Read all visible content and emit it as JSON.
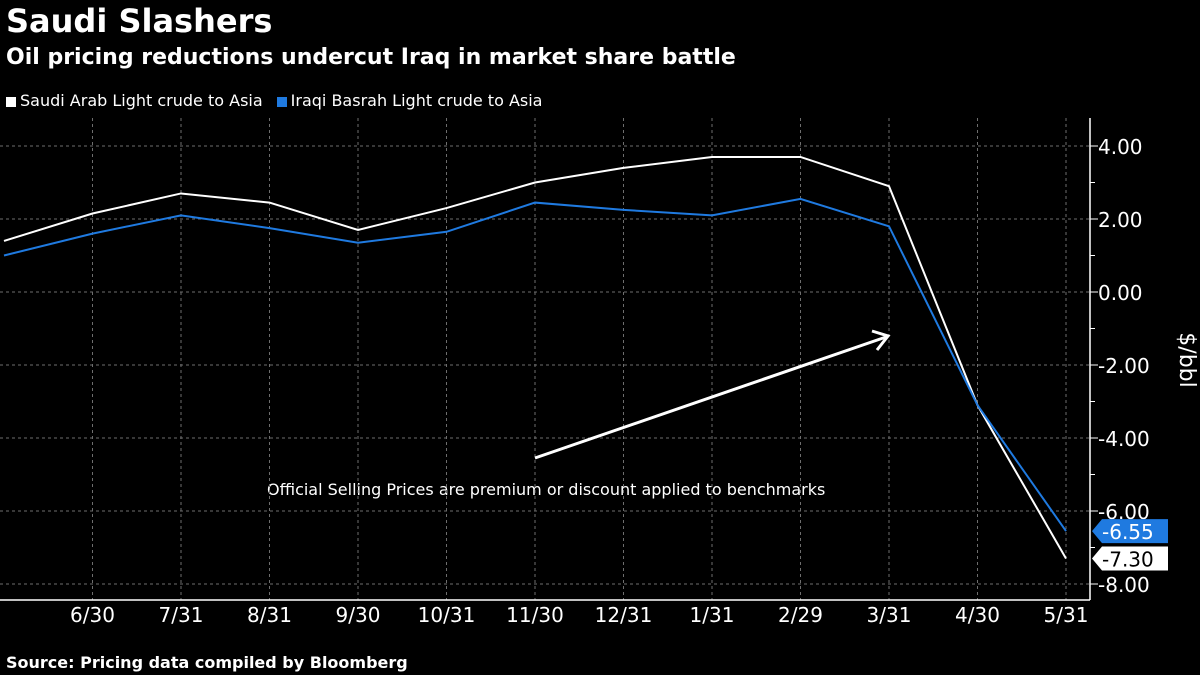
{
  "title": "Saudi Slashers",
  "subtitle": "Oil pricing reductions undercut Iraq in market share battle",
  "source": "Source: Pricing data compiled by Bloomberg",
  "colors": {
    "saudi": "#ffffff",
    "iraq": "#1f7ae0",
    "grid": "#6e6e6e",
    "background": "#000000"
  },
  "chart_data": {
    "type": "line",
    "ylabel": "$/bbl",
    "ylim": [
      -8.5,
      4.8
    ],
    "yticks": [
      "4.00",
      "2.00",
      "0.00",
      "-2.00",
      "-4.00",
      "-6.00",
      "-8.00"
    ],
    "ytick_values": [
      4,
      2,
      0,
      -2,
      -4,
      -6,
      -8
    ],
    "x_tick_labels": [
      "6/30",
      "7/31",
      "8/31",
      "9/30",
      "10/31",
      "11/30",
      "12/31",
      "1/31",
      "2/29",
      "3/31",
      "4/30",
      "5/31"
    ],
    "x": [
      "5/31",
      "6/30",
      "7/31",
      "8/31",
      "9/30",
      "10/31",
      "11/30",
      "12/31",
      "1/31",
      "2/29",
      "3/31",
      "4/30",
      "5/31"
    ],
    "grid": true,
    "legend_position": "top-left",
    "series": [
      {
        "name": "Saudi Arab Light crude to Asia",
        "color": "#ffffff",
        "values": [
          1.4,
          2.15,
          2.7,
          2.45,
          1.7,
          2.3,
          3.0,
          3.4,
          3.7,
          3.7,
          2.9,
          -3.1,
          -7.3
        ],
        "last_label": "-7.30"
      },
      {
        "name": "Iraqi Basrah Light crude to Asia",
        "color": "#1f7ae0",
        "values": [
          1.0,
          1.6,
          2.1,
          1.75,
          1.35,
          1.65,
          2.45,
          2.25,
          2.1,
          2.55,
          1.8,
          -3.1,
          -6.55
        ],
        "last_label": "-6.55"
      }
    ],
    "annotation": "Official Selling Prices are premium or discount applied to benchmarks"
  }
}
